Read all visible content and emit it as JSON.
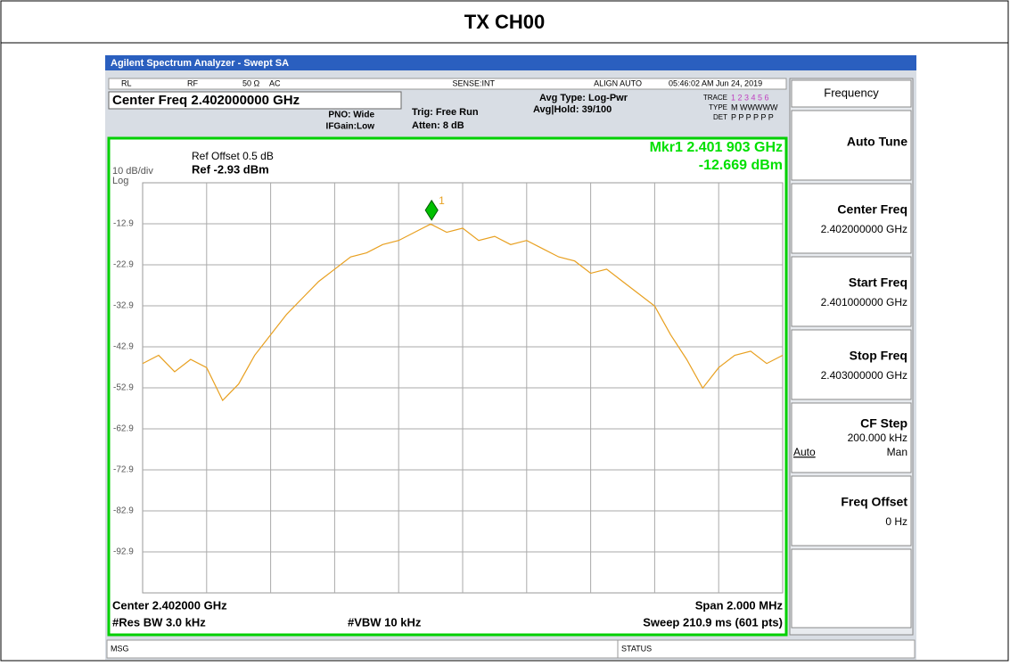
{
  "page_title": "TX CH00",
  "window_title": "Agilent Spectrum Analyzer - Swept SA",
  "status_bar": {
    "rl": "RL",
    "rf": "RF",
    "impedance": "50 Ω",
    "coupling": "AC",
    "sense": "SENSE:INT",
    "align": "ALIGN AUTO",
    "datetime": "05:46:02 AM Jun 24, 2019"
  },
  "settings": {
    "center_freq": "Center Freq 2.402000000 GHz",
    "pno": "PNO: Wide",
    "ifgain": "IFGain:Low",
    "trig": "Trig: Free Run",
    "atten": "Atten: 8 dB",
    "avg_type": "Avg Type: Log-Pwr",
    "avg_hold": "Avg|Hold: 39/100",
    "trace_label": "TRACE",
    "trace_values": "1 2 3 4 5 6",
    "type_label": "TYPE",
    "type_values": "M WWWWW",
    "det_label": "DET",
    "det_values": "P P P P P P"
  },
  "plot_header": {
    "ref_offset": "Ref Offset 0.5 dB",
    "scale": "10 dB/div",
    "ref": "Ref -2.93 dBm",
    "log": "Log",
    "marker_freq": "Mkr1 2.401 903 GHz",
    "marker_level": "-12.669 dBm"
  },
  "plot_footer": {
    "center": "Center 2.402000 GHz",
    "span": "Span 2.000 MHz",
    "rbw": "#Res BW 3.0 kHz",
    "vbw": "#VBW 10 kHz",
    "sweep": "Sweep  210.9 ms (601 pts)"
  },
  "softkeys": {
    "menu": "Frequency",
    "keys": [
      {
        "label": "Auto Tune"
      },
      {
        "label": "Center Freq",
        "value": "2.402000000 GHz"
      },
      {
        "label": "Start Freq",
        "value": "2.401000000 GHz"
      },
      {
        "label": "Stop Freq",
        "value": "2.403000000 GHz"
      },
      {
        "label": "CF Step",
        "value": "200.000 kHz",
        "option_left": "Auto",
        "option_right": "Man"
      },
      {
        "label": "Freq Offset",
        "value": "0 Hz"
      }
    ]
  },
  "message_bar": {
    "msg": "MSG",
    "status": "STATUS"
  },
  "chart_data": {
    "type": "line",
    "xlim": [
      2.401,
      2.403
    ],
    "ylim": [
      -102.93,
      -2.93
    ],
    "yticks": [
      {
        "value": -12.93,
        "label": "-12.9"
      },
      {
        "value": -22.93,
        "label": "-22.9"
      },
      {
        "value": -32.93,
        "label": "-32.9"
      },
      {
        "value": -42.93,
        "label": "-42.9"
      },
      {
        "value": -52.93,
        "label": "-52.9"
      },
      {
        "value": -62.93,
        "label": "-62.9"
      },
      {
        "value": -72.93,
        "label": "-72.9"
      },
      {
        "value": -82.93,
        "label": "-82.9"
      },
      {
        "value": -92.93,
        "label": "-92.9"
      }
    ],
    "grid": true,
    "series": [
      {
        "color": "#e8a020",
        "x": [
          2.401,
          2.40105,
          2.4011,
          2.40115,
          2.4012,
          2.40125,
          2.4013,
          2.40135,
          2.4014,
          2.40145,
          2.4015,
          2.40155,
          2.4016,
          2.40165,
          2.4017,
          2.40175,
          2.4018,
          2.40185,
          2.4019,
          2.40195,
          2.402,
          2.40205,
          2.4021,
          2.40215,
          2.4022,
          2.40225,
          2.4023,
          2.40235,
          2.4024,
          2.40245,
          2.4025,
          2.40255,
          2.4026,
          2.40265,
          2.4027,
          2.40275,
          2.4028,
          2.40285,
          2.4029,
          2.40295,
          2.403
        ],
        "values": [
          -47,
          -45,
          -49,
          -46,
          -48,
          -56,
          -52,
          -45,
          -40,
          -35,
          -31,
          -27,
          -24,
          -21,
          -20,
          -18,
          -17,
          -15,
          -13,
          -15,
          -14,
          -17,
          -16,
          -18,
          -17,
          -19,
          -21,
          -22,
          -25,
          -24,
          -27,
          -30,
          -33,
          -40,
          -46,
          -53,
          -48,
          -45,
          -44,
          -47,
          -45
        ]
      }
    ],
    "marker": {
      "label": "1",
      "x": 2.401903,
      "value": -12.669,
      "color": "#00c000"
    }
  }
}
